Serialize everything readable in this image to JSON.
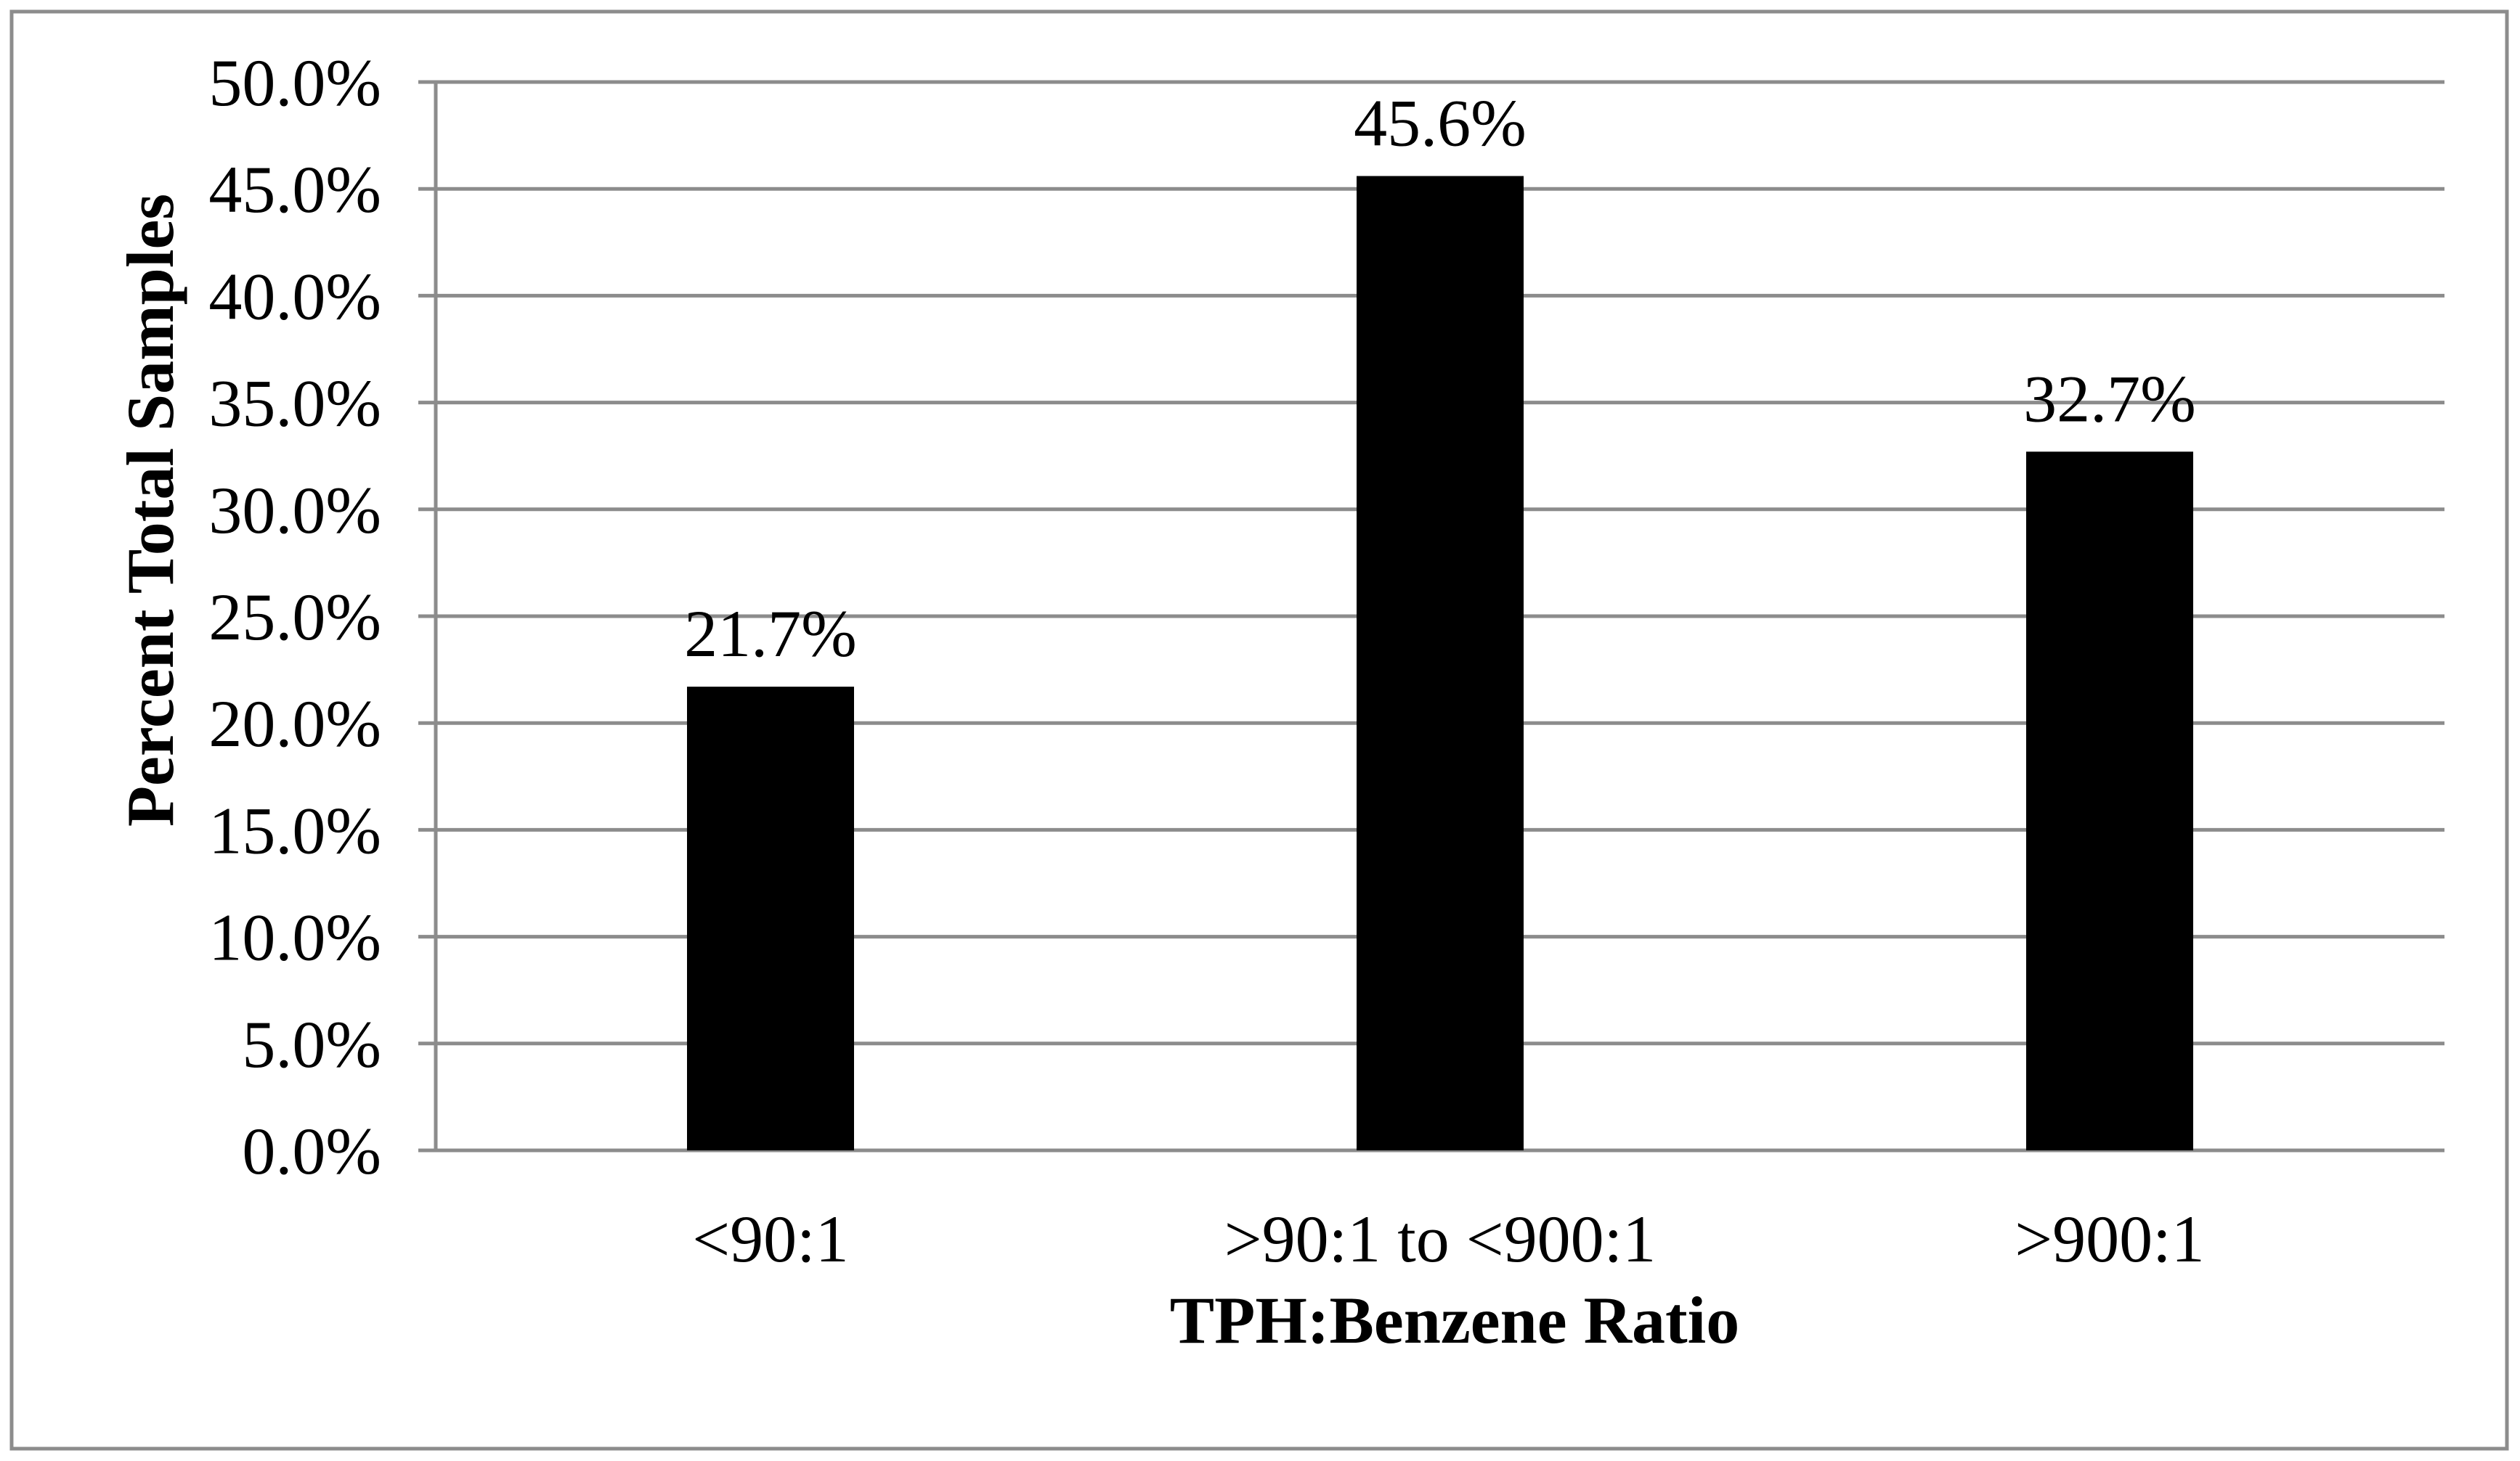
{
  "chart_data": {
    "type": "bar",
    "categories": [
      "<90:1",
      ">90:1 to <900:1",
      ">900:1"
    ],
    "values": [
      21.7,
      45.6,
      32.7
    ],
    "data_labels": [
      "21.7%",
      "45.6%",
      "32.7%"
    ],
    "title": "",
    "xlabel": "TPH:Benzene Ratio",
    "ylabel": "Percent Total Samples",
    "ylim": [
      0,
      50
    ],
    "yticks": [
      0,
      5,
      10,
      15,
      20,
      25,
      30,
      35,
      40,
      45,
      50
    ],
    "ytick_labels": [
      "0.0%",
      "5.0%",
      "10.0%",
      "15.0%",
      "20.0%",
      "25.0%",
      "30.0%",
      "35.0%",
      "40.0%",
      "45.0%",
      "50.0%"
    ],
    "grid": true,
    "legend": "none",
    "colors": {
      "bar": "#000000",
      "gridline": "#8c8c8c",
      "border": "#8c8c8c",
      "text": "#000000"
    }
  }
}
